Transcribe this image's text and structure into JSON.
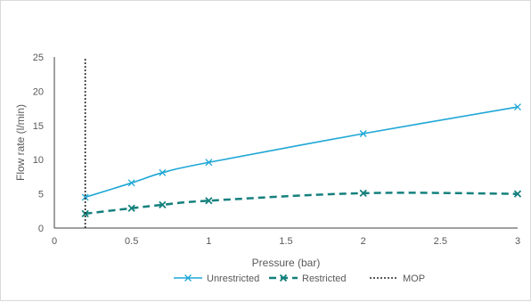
{
  "chart_data": {
    "type": "line",
    "title": "",
    "xlabel": "Pressure (bar)",
    "ylabel": "Flow rate (l/min)",
    "xlim": [
      0,
      3
    ],
    "ylim": [
      0,
      25
    ],
    "x_ticks": [
      "0",
      "0.5",
      "1",
      "1.5",
      "2",
      "2.5",
      "3"
    ],
    "y_ticks": [
      "0",
      "5",
      "10",
      "15",
      "20",
      "25"
    ],
    "grid": false,
    "legend_position": "bottom",
    "series": [
      {
        "name": "Unrestricted",
        "color": "#1ea7d6",
        "line_style": "solid",
        "marker": "x",
        "x": [
          0.2,
          0.5,
          0.7,
          1,
          2,
          3
        ],
        "y": [
          4.5,
          6.6,
          8.1,
          9.6,
          13.8,
          17.7
        ]
      },
      {
        "name": "Restricted",
        "color": "#14807d",
        "line_style": "dashed",
        "marker": "x",
        "x": [
          0.2,
          0.5,
          0.7,
          1,
          2,
          3
        ],
        "y": [
          2.1,
          2.9,
          3.4,
          4.0,
          5.1,
          5.0
        ]
      },
      {
        "name": "MOP",
        "color": "#262626",
        "line_style": "dotted",
        "x": [
          0.2,
          0.2
        ],
        "y": [
          0,
          25
        ]
      }
    ]
  }
}
